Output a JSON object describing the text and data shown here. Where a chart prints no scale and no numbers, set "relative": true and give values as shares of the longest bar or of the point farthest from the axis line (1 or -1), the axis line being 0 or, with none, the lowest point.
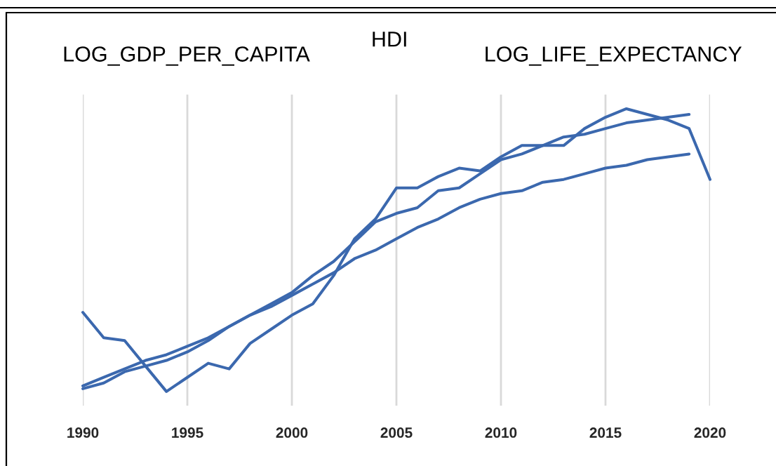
{
  "chart_data": {
    "type": "line",
    "relative": true,
    "annotations": [
      "LOG_GDP_PER_CAPITA",
      "HDI",
      "LOG_LIFE_EXPECTANCY"
    ],
    "x": [
      1990,
      1991,
      1992,
      1993,
      1994,
      1995,
      1996,
      1997,
      1998,
      1999,
      2000,
      2001,
      2002,
      2003,
      2004,
      2005,
      2006,
      2007,
      2008,
      2009,
      2010,
      2011,
      2012,
      2013,
      2014,
      2015,
      2016,
      2017,
      2018,
      2019,
      2020
    ],
    "xlim": [
      1990,
      2020
    ],
    "xticks": [
      1990,
      1995,
      2000,
      2005,
      2010,
      2015,
      2020
    ],
    "grid": "x",
    "tick_labels": "x",
    "series": [
      {
        "color": "#3b68ae",
        "values": [
          0.28,
          0.19,
          0.18,
          0.09,
          0,
          0.05,
          0.1,
          0.08,
          0.17,
          0.22,
          0.27,
          0.31,
          0.41,
          0.54,
          0.61,
          0.72,
          0.72,
          0.76,
          0.79,
          0.78,
          0.83,
          0.87,
          0.87,
          0.87,
          0.93,
          0.97,
          1,
          0.98,
          0.96,
          0.93,
          0.75
        ]
      },
      {
        "color": "#3b68ae",
        "values": [
          0.01,
          0.03,
          0.07,
          0.09,
          0.11,
          0.14,
          0.18,
          0.23,
          0.27,
          0.31,
          0.35,
          0.41,
          0.46,
          0.53,
          0.6,
          0.63,
          0.65,
          0.71,
          0.72,
          0.77,
          0.82,
          0.84,
          0.87,
          0.9,
          0.91,
          0.93,
          0.95,
          0.96,
          0.97,
          0.98,
          null
        ]
      },
      {
        "color": "#3b68ae",
        "values": [
          0.02,
          0.05,
          0.08,
          0.11,
          0.13,
          0.16,
          0.19,
          0.23,
          0.27,
          0.3,
          0.34,
          0.38,
          0.42,
          0.47,
          0.5,
          0.54,
          0.58,
          0.61,
          0.65,
          0.68,
          0.7,
          0.71,
          0.74,
          0.75,
          0.77,
          0.79,
          0.8,
          0.82,
          0.83,
          0.84,
          null
        ]
      }
    ]
  }
}
